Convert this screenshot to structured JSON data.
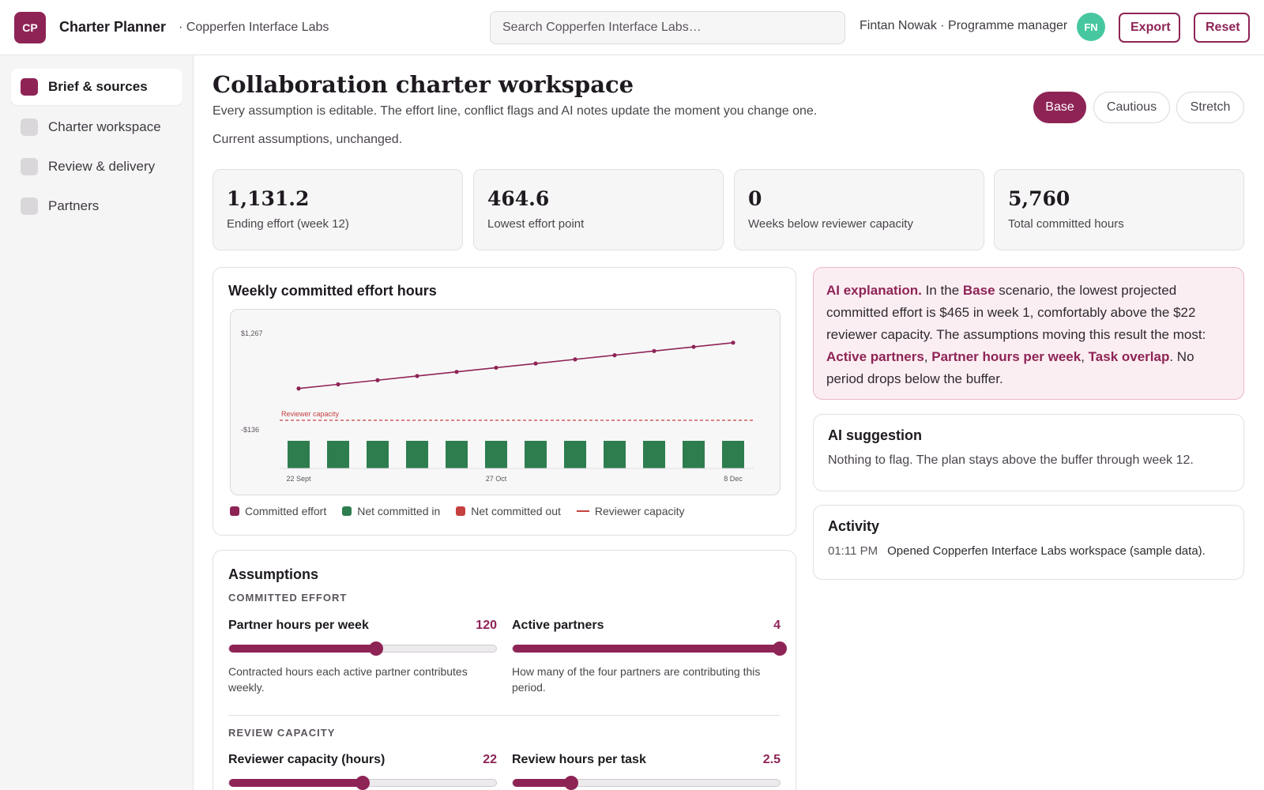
{
  "header": {
    "logo": "CP",
    "app_title": "Charter Planner",
    "org": "· Copperfen Interface Labs",
    "search_placeholder": "Search Copperfen Interface Labs…",
    "user": "Fintan Nowak · Programme manager",
    "avatar": "FN",
    "export_label": "Export",
    "reset_label": "Reset"
  },
  "sidebar": {
    "items": [
      {
        "label": "Brief & sources",
        "active": true
      },
      {
        "label": "Charter workspace",
        "active": false
      },
      {
        "label": "Review & delivery",
        "active": false
      },
      {
        "label": "Partners",
        "active": false
      }
    ]
  },
  "main": {
    "title": "Collaboration charter workspace",
    "subtitle": "Every assumption is editable. The effort line, conflict flags and AI notes update the moment you change one.",
    "status": "Current assumptions, unchanged.",
    "scenarios": [
      {
        "label": "Base",
        "active": true
      },
      {
        "label": "Cautious",
        "active": false
      },
      {
        "label": "Stretch",
        "active": false
      }
    ]
  },
  "kpis": [
    {
      "value": "1,131.2",
      "label": "Ending effort (week 12)"
    },
    {
      "value": "464.6",
      "label": "Lowest effort point"
    },
    {
      "value": "0",
      "label": "Weeks below reviewer capacity"
    },
    {
      "value": "5,760",
      "label": "Total committed hours"
    }
  ],
  "chart_card": {
    "title": "Weekly committed effort hours"
  },
  "chart_data": {
    "type": "line",
    "title": "Weekly committed effort hours",
    "x": [
      1,
      2,
      3,
      4,
      5,
      6,
      7,
      8,
      9,
      10,
      11,
      12
    ],
    "x_tick_labels": [
      {
        "index": 0,
        "label": "22 Sept"
      },
      {
        "index": 5,
        "label": "27 Oct"
      },
      {
        "index": 11,
        "label": "8 Dec"
      }
    ],
    "y_tick_labels": [
      "$1,267",
      "-$136"
    ],
    "ylim": [
      -136,
      1267
    ],
    "series": [
      {
        "name": "Committed effort",
        "type": "line",
        "color": "#8e2456",
        "values": [
          464.6,
          525.2,
          585.8,
          646.4,
          707.0,
          767.6,
          828.2,
          888.8,
          949.4,
          1010.0,
          1070.6,
          1131.2
        ]
      },
      {
        "name": "Net committed in",
        "type": "bar",
        "color": "#2e7d4f",
        "values": [
          60.6,
          60.6,
          60.6,
          60.6,
          60.6,
          60.6,
          60.6,
          60.6,
          60.6,
          60.6,
          60.6,
          60.6
        ]
      },
      {
        "name": "Net committed out",
        "type": "bar",
        "color": "#c4413f",
        "values": [
          0,
          0,
          0,
          0,
          0,
          0,
          0,
          0,
          0,
          0,
          0,
          0
        ]
      }
    ],
    "reference_line": {
      "name": "Reviewer capacity",
      "label": "Reviewer capacity",
      "value": 22,
      "color": "#c4413f"
    },
    "legend": [
      "Committed effort",
      "Net committed in",
      "Net committed out",
      "Reviewer capacity"
    ],
    "legend_placement": "bottom",
    "grid": false
  },
  "ai_explanation": {
    "lead": "AI explanation.",
    "t1": " In the ",
    "scenario": "Base",
    "t2": " scenario, the lowest projected committed effort is $465 in week 1, comfortably above the $22 reviewer capacity. The assumptions moving this result the most: ",
    "d1": "Active partners",
    "c1": ", ",
    "d2": "Partner hours per week",
    "c2": ", ",
    "d3": "Task overlap",
    "t3": ". No period drops below the buffer."
  },
  "ai_suggestion": {
    "title": "AI suggestion",
    "text": "Nothing to flag. The plan stays above the buffer through week 12."
  },
  "activity": {
    "title": "Activity",
    "items": [
      {
        "time": "01:11 PM",
        "text": "Opened Copperfen Interface Labs workspace (sample data)."
      }
    ]
  },
  "assumptions": {
    "title": "Assumptions",
    "groups": [
      {
        "label": "COMMITTED EFFORT",
        "sliders": [
          {
            "label": "Partner hours per week",
            "value": "120",
            "fraction": 0.55,
            "help": "Contracted hours each active partner contributes weekly."
          },
          {
            "label": "Active partners",
            "value": "4",
            "fraction": 1.0,
            "help": "How many of the four partners are contributing this period."
          }
        ]
      },
      {
        "label": "REVIEW CAPACITY",
        "sliders": [
          {
            "label": "Reviewer capacity (hours)",
            "value": "22",
            "fraction": 0.5,
            "help": ""
          },
          {
            "label": "Review hours per task",
            "value": "2.5",
            "fraction": 0.22,
            "help": ""
          }
        ]
      }
    ]
  },
  "colors": {
    "accent": "#8e2456",
    "positive": "#2e7d4f",
    "negative": "#c4413f",
    "avatar": "#46c7a0"
  }
}
